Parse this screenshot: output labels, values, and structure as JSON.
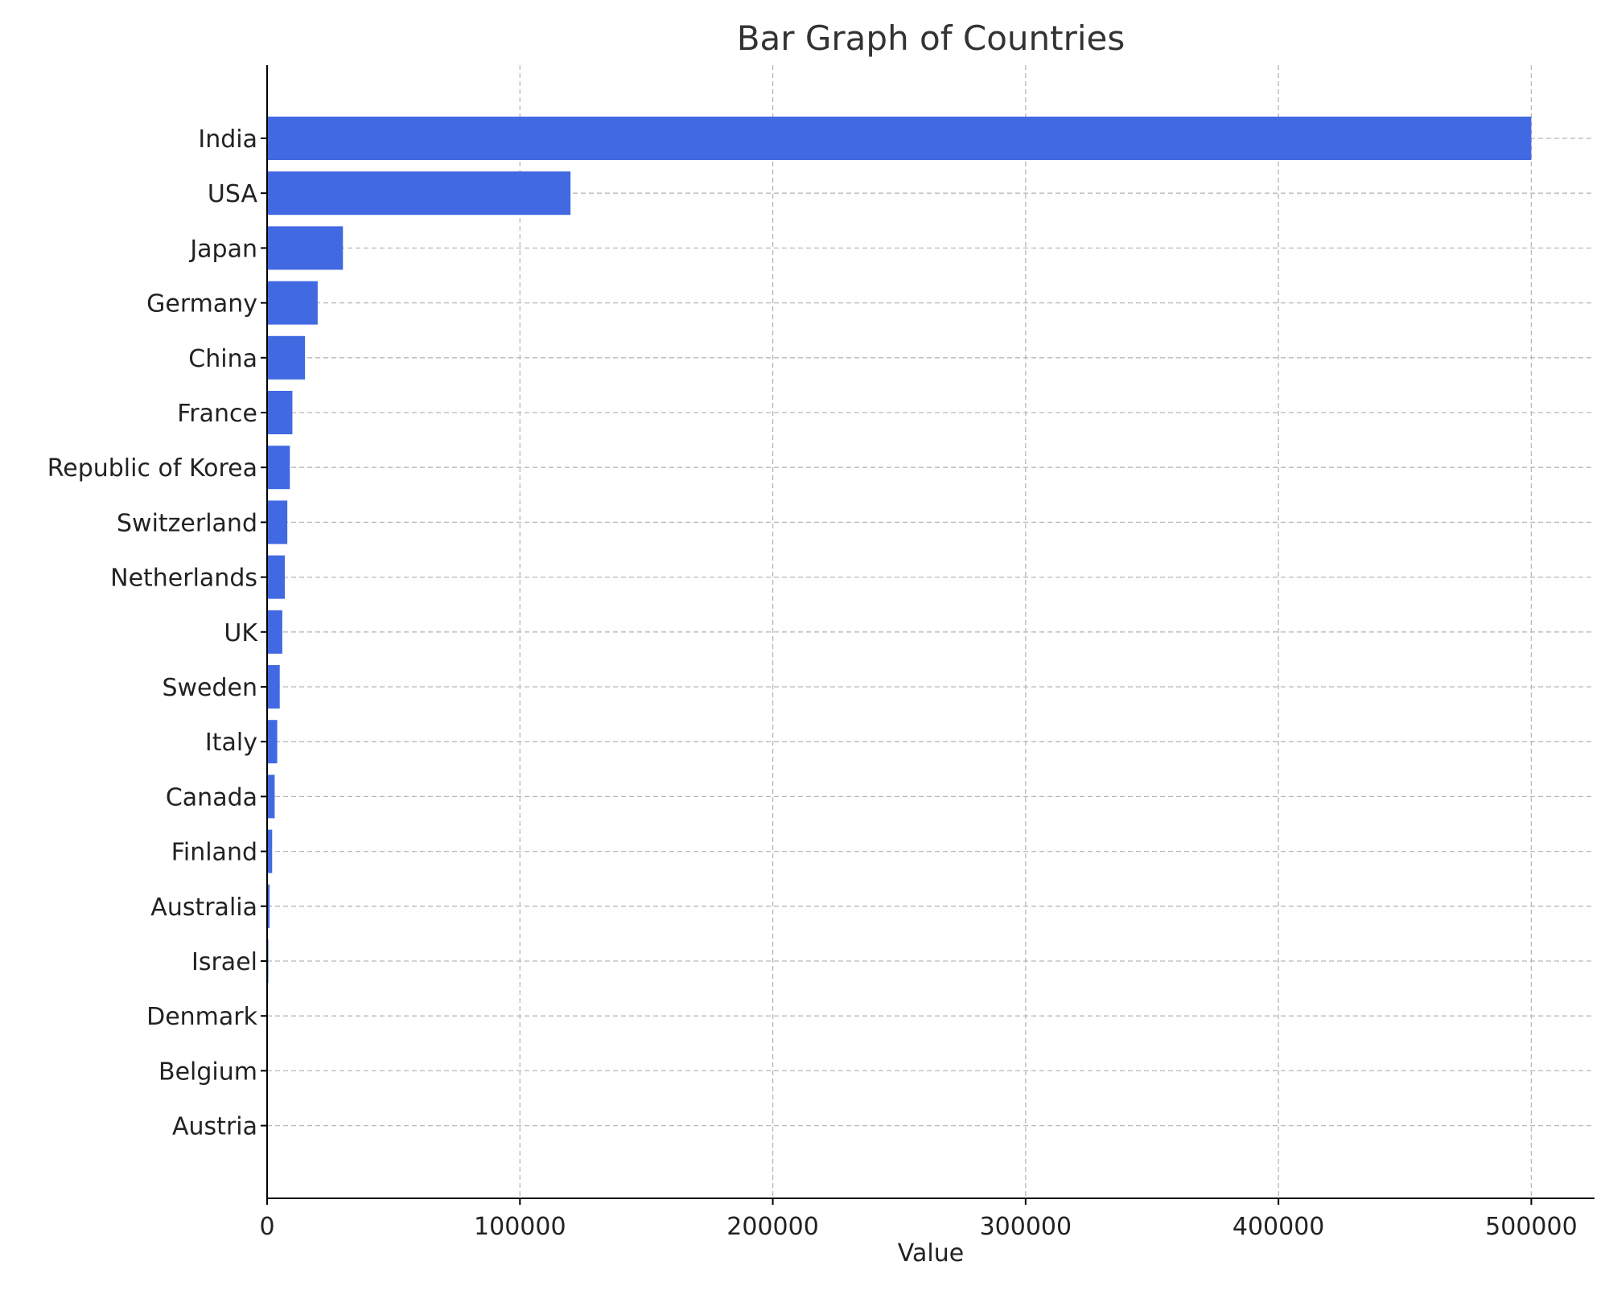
{
  "chart_data": {
    "type": "bar",
    "orientation": "horizontal",
    "title": "Bar Graph of Countries",
    "xlabel": "Value",
    "ylabel": "",
    "xlim": [
      0,
      525000
    ],
    "xticks": [
      "0",
      "100000",
      "200000",
      "300000",
      "400000",
      "500000"
    ],
    "categories": [
      "India",
      "USA",
      "Japan",
      "Germany",
      "China",
      "France",
      "Republic of Korea",
      "Switzerland",
      "Netherlands",
      "UK",
      "Sweden",
      "Italy",
      "Canada",
      "Finland",
      "Australia",
      "Israel",
      "Denmark",
      "Belgium",
      "Austria"
    ],
    "values": [
      500000,
      120000,
      30000,
      20000,
      15000,
      10000,
      9000,
      8000,
      7000,
      6000,
      5000,
      4000,
      3000,
      2000,
      1000,
      500,
      200,
      100,
      50
    ],
    "bar_color": "#4169e1",
    "grid": true,
    "grid_style": "dashed"
  }
}
